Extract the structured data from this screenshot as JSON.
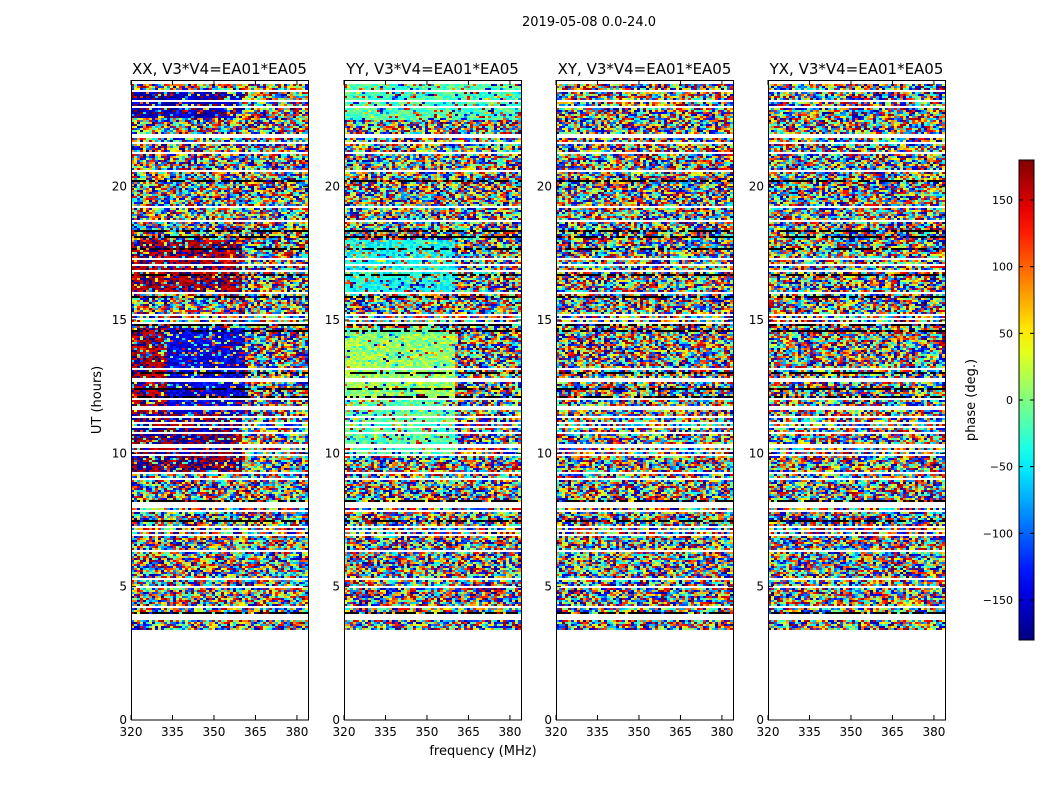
{
  "chart_data": {
    "type": "heatmap",
    "suptitle": "2019-05-08 0.0-24.0",
    "xlabel": "frequency (MHz)",
    "ylabel": "UT (hours)",
    "xlim": [
      320,
      384
    ],
    "ylim": [
      0,
      24
    ],
    "x_ticks": [
      320,
      335,
      350,
      365,
      380
    ],
    "y_ticks": [
      0,
      5,
      10,
      15,
      20
    ],
    "data_time_range": [
      3.4,
      24.0
    ],
    "colorscale": "jet",
    "colorbar": {
      "label": "phase (deg.)",
      "range": [
        -180,
        180
      ],
      "ticks": [
        150,
        100,
        50,
        0,
        -50,
        -100,
        -150
      ],
      "tick_labels": [
        "150",
        "100",
        "50",
        "0",
        "−50",
        "−100",
        "−150"
      ]
    },
    "panels": [
      {
        "title": "XX, V3*V4=EA01*EA05",
        "coherent_regions": [
          {
            "t": [
              9.3,
              11.5
            ],
            "f": [
              320,
              360
            ],
            "phase": -178
          },
          {
            "t": [
              11.5,
              14.7
            ],
            "f": [
              320,
              333
            ],
            "phase": 165
          },
          {
            "t": [
              11.5,
              14.7
            ],
            "f": [
              333,
              361
            ],
            "phase": -145
          },
          {
            "t": [
              16.0,
              18.0
            ],
            "f": [
              320,
              360
            ],
            "phase": 170
          },
          {
            "t": [
              22.6,
              23.6
            ],
            "f": [
              320,
              360
            ],
            "phase": -160
          }
        ]
      },
      {
        "title": "YY, V3*V4=EA01*EA05",
        "coherent_regions": [
          {
            "t": [
              10.0,
              14.7
            ],
            "f": [
              320,
              360
            ],
            "phase": -15
          },
          {
            "t": [
              12.0,
              14.5
            ],
            "f": [
              320,
              360
            ],
            "phase": 15
          },
          {
            "t": [
              16.0,
              18.0
            ],
            "f": [
              320,
              360
            ],
            "phase": -40
          },
          {
            "t": [
              22.5,
              24.0
            ],
            "f": [
              320,
              384
            ],
            "phase": -20
          }
        ]
      },
      {
        "title": "XY, V3*V4=EA01*EA05",
        "coherent_regions": []
      },
      {
        "title": "YX, V3*V4=EA01*EA05",
        "coherent_regions": []
      }
    ]
  }
}
